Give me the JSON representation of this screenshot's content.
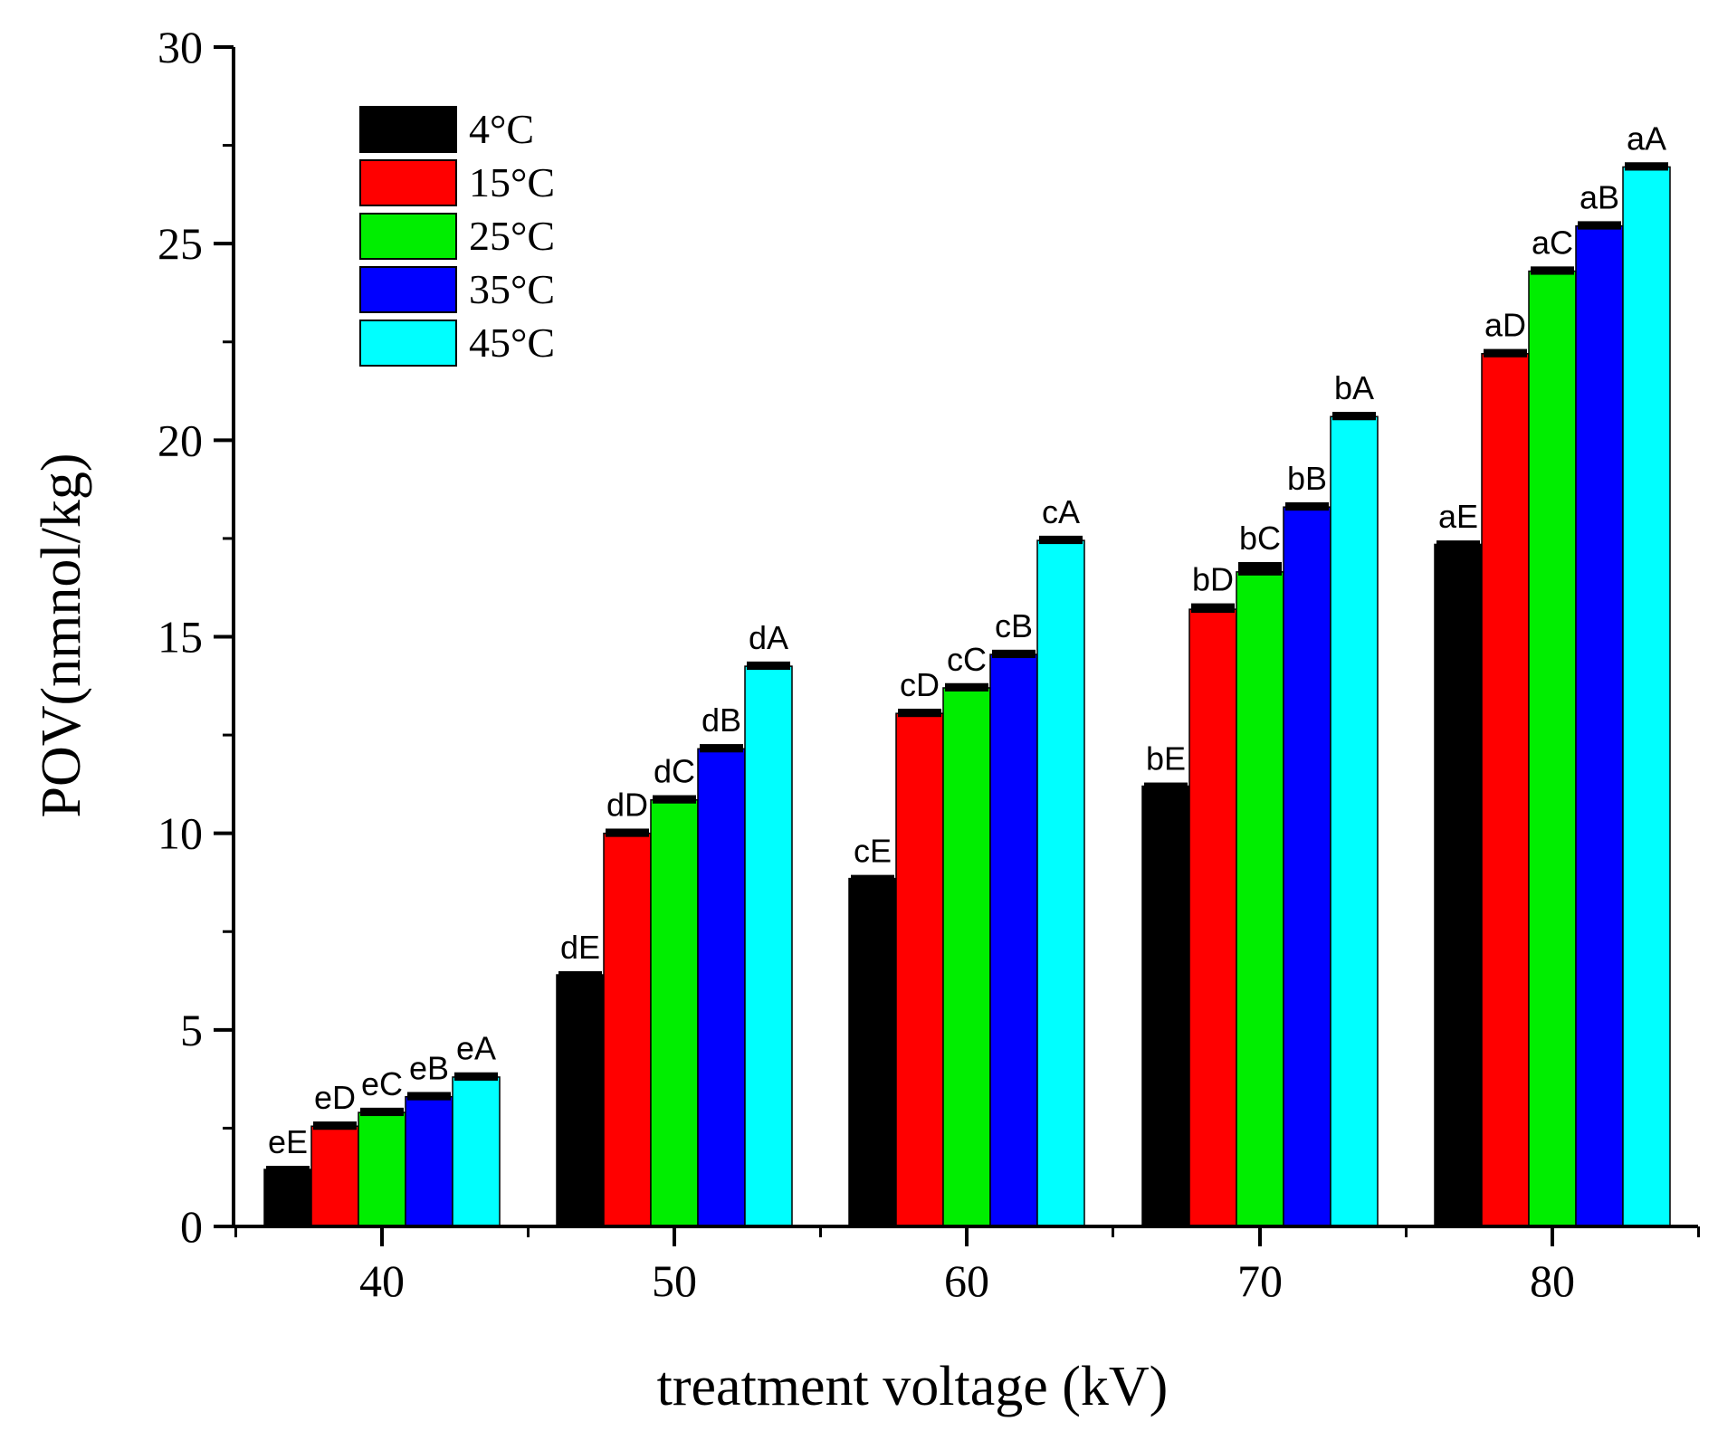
{
  "chart_data": {
    "type": "bar",
    "title": "",
    "xlabel": "treatment voltage (kV)",
    "ylabel": "POV(nmnol/kg)",
    "ylim": [
      0,
      30
    ],
    "yticks": [
      "0",
      "5",
      "10",
      "15",
      "20",
      "25",
      "30"
    ],
    "categories": [
      "40",
      "50",
      "60",
      "70",
      "80"
    ],
    "legend_position": "top-left",
    "series": [
      {
        "name": "4°C",
        "color": "#000000",
        "values": [
          1.45,
          6.4,
          8.85,
          11.2,
          17.35
        ],
        "errors": [
          0.02,
          0.02,
          0.02,
          0.02,
          0.1
        ],
        "labels": [
          "eE",
          "dE",
          "cE",
          "bE",
          "aE"
        ]
      },
      {
        "name": "15°C",
        "color": "#ff0000",
        "values": [
          2.55,
          10.0,
          13.05,
          15.7,
          22.2
        ],
        "errors": [
          0.12,
          0.12,
          0.12,
          0.15,
          0.12
        ],
        "labels": [
          "eD",
          "dD",
          "cD",
          "bD",
          "aD"
        ]
      },
      {
        "name": "25°C",
        "color": "#00ee00",
        "values": [
          2.9,
          10.85,
          13.7,
          16.65,
          24.3
        ],
        "errors": [
          0.12,
          0.12,
          0.12,
          0.25,
          0.12
        ],
        "labels": [
          "eC",
          "dC",
          "cC",
          "bC",
          "aC"
        ]
      },
      {
        "name": "35°C",
        "color": "#0000ff",
        "values": [
          3.3,
          12.15,
          14.55,
          18.3,
          25.45
        ],
        "errors": [
          0.12,
          0.12,
          0.12,
          0.12,
          0.12
        ],
        "labels": [
          "eB",
          "dB",
          "cB",
          "bB",
          "aB"
        ]
      },
      {
        "name": "45°C",
        "color": "#00ffff",
        "values": [
          3.8,
          14.25,
          17.45,
          20.6,
          26.95
        ],
        "errors": [
          0.12,
          0.12,
          0.12,
          0.12,
          0.12
        ],
        "labels": [
          "eA",
          "dA",
          "cA",
          "bA",
          "aA"
        ]
      }
    ]
  }
}
